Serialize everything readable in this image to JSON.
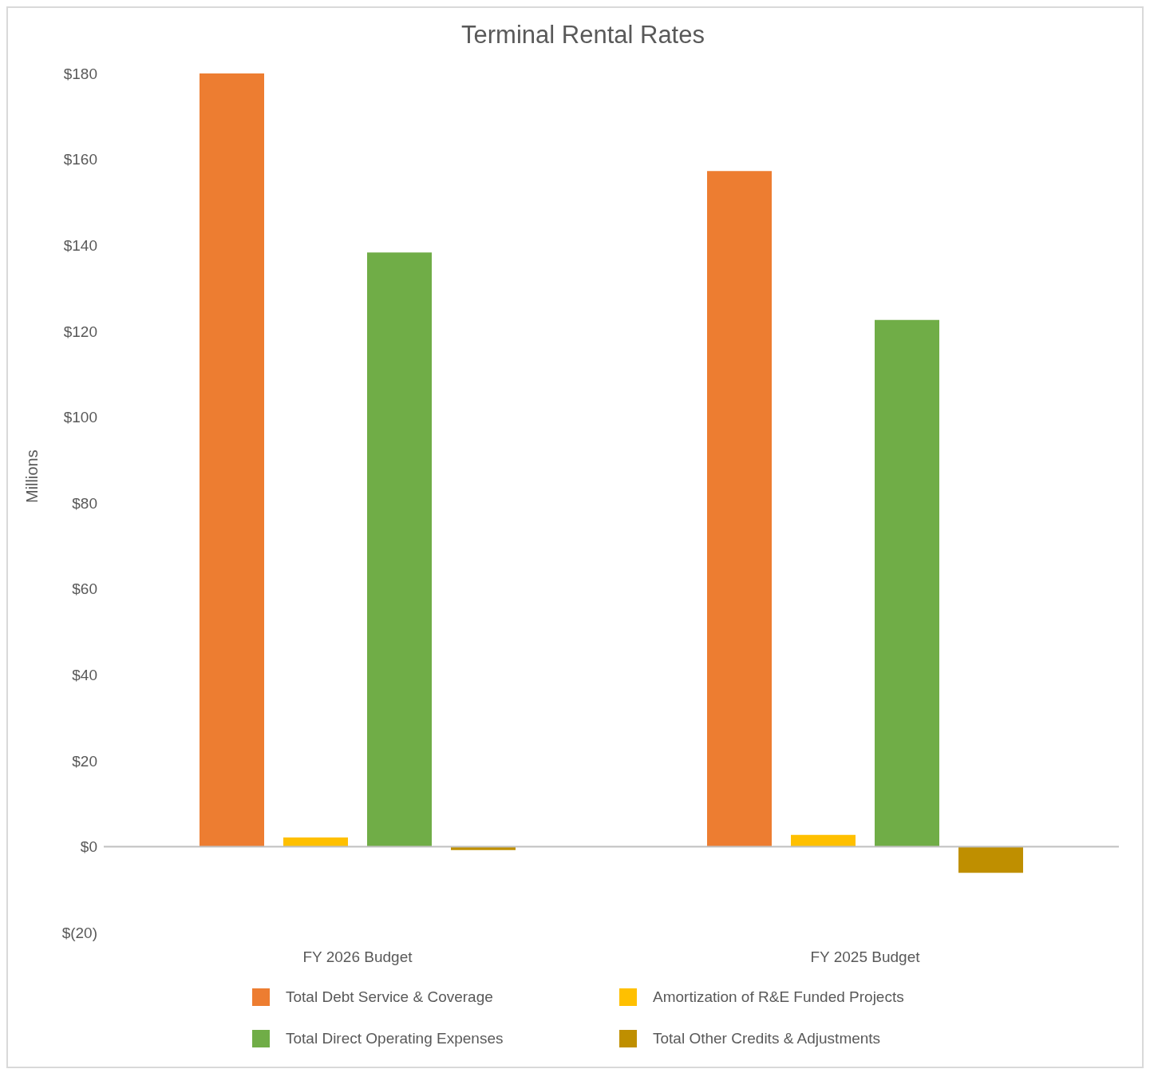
{
  "chart_data": {
    "type": "bar",
    "title": "Terminal Rental Rates",
    "ylabel": "Millions",
    "categories": [
      "FY 2026 Budget",
      "FY 2025 Budget"
    ],
    "series": [
      {
        "name": "Total Debt Service & Coverage",
        "color": "#ed7d31",
        "values": [
          180,
          157.3
        ]
      },
      {
        "name": "Amortization of R&E Funded Projects",
        "color": "#ffc000",
        "values": [
          2.1,
          2.7
        ]
      },
      {
        "name": "Total Direct Operating Expenses",
        "color": "#70ad47",
        "values": [
          138.3,
          122.6
        ]
      },
      {
        "name": "Total Other Credits & Adjustments",
        "color": "#bf8f00",
        "values": [
          -0.8,
          -6.1
        ]
      }
    ],
    "ylim": [
      -20,
      180
    ],
    "yticks": [
      {
        "value": -20,
        "label": "$(20)"
      },
      {
        "value": 0,
        "label": "$0"
      },
      {
        "value": 20,
        "label": "$20"
      },
      {
        "value": 40,
        "label": "$40"
      },
      {
        "value": 60,
        "label": "$60"
      },
      {
        "value": 80,
        "label": "$80"
      },
      {
        "value": 100,
        "label": "$100"
      },
      {
        "value": 120,
        "label": "$120"
      },
      {
        "value": 140,
        "label": "$140"
      },
      {
        "value": 160,
        "label": "$160"
      },
      {
        "value": 180,
        "label": "$180"
      }
    ],
    "ref_lines": [
      {
        "axis": "y",
        "value": 0,
        "color": "#bfbfbf"
      }
    ],
    "legend": "bottom"
  }
}
